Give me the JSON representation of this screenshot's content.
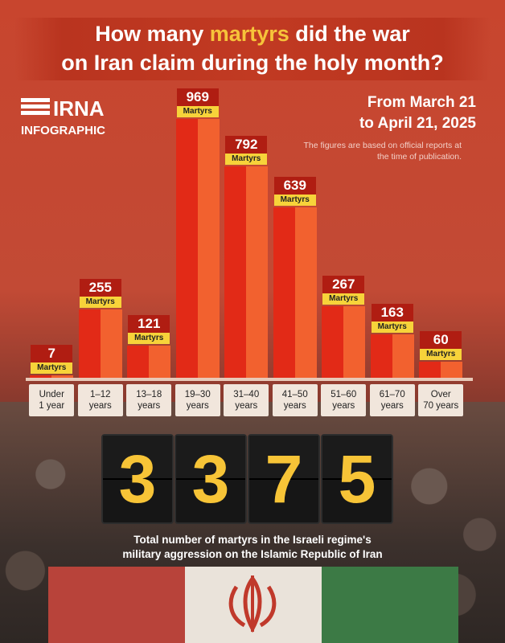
{
  "title": {
    "part1": "How many ",
    "highlight": "martyrs",
    "part2": " did the war",
    "line2": "on Iran claim during the holy month?"
  },
  "logo": {
    "brand": "IRNA",
    "sub": "INFOGRAPHIC"
  },
  "date_range": {
    "line1": "From March 21",
    "line2": "to April 21, 2025"
  },
  "note": "The figures are based on official reports at the time of publication.",
  "colors": {
    "bar_dark": "#e22a17",
    "bar_light": "#f2612f",
    "value_box": "#b01d12",
    "label_yellow": "#f7d33a",
    "digit": "#f7c437"
  },
  "chart_data": {
    "type": "bar",
    "categories": [
      [
        "Under",
        "1 year"
      ],
      [
        "1–12",
        "years"
      ],
      [
        "13–18",
        "years"
      ],
      [
        "19–30",
        "years"
      ],
      [
        "31–40",
        "years"
      ],
      [
        "41–50",
        "years"
      ],
      [
        "51–60",
        "years"
      ],
      [
        "61–70",
        "years"
      ],
      [
        "Over",
        "70 years"
      ]
    ],
    "values": [
      7,
      255,
      121,
      969,
      792,
      639,
      267,
      163,
      60
    ],
    "value_unit_label": "Martyrs",
    "ylim": [
      0,
      969
    ],
    "title": "",
    "xlabel": "",
    "ylabel": ""
  },
  "total": {
    "digits": [
      "3",
      "3",
      "7",
      "5"
    ]
  },
  "caption": {
    "line1": "Total number of martyrs in the Israeli regime's",
    "line2": "military aggression on the Islamic Republic of Iran"
  }
}
